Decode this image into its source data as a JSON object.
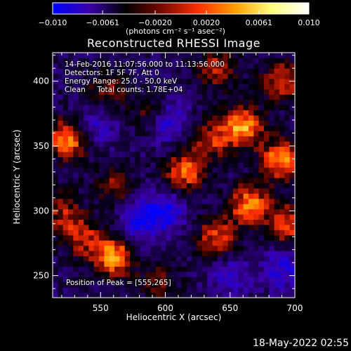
{
  "chart_data": {
    "type": "heatmap",
    "title": "Reconstructed RHESSI Image",
    "xlabel": "Heliocentric X (arcsec)",
    "ylabel": "Heliocentric Y (arcsec)",
    "xlim": [
      513,
      700
    ],
    "ylim": [
      233,
      422
    ],
    "xticks": [
      550,
      600,
      650,
      700
    ],
    "yticks": [
      250,
      300,
      350,
      400
    ],
    "colorbar": {
      "range": [
        -0.01,
        0.01
      ],
      "ticks": [
        {
          "value": -0.01,
          "label": "−0.010"
        },
        {
          "value": -0.0061,
          "label": "−0.0061"
        },
        {
          "value": -0.002,
          "label": "−0.0020"
        },
        {
          "value": 0.002,
          "label": "0.0020"
        },
        {
          "value": 0.0061,
          "label": "0.0061"
        },
        {
          "value": 0.01,
          "label": "0.010"
        }
      ],
      "unit_label": "(photons cm⁻² s⁻¹ asec⁻²)",
      "colors": [
        "#0000ff",
        "#3a00aa",
        "#000000",
        "#7a0a00",
        "#ff3000",
        "#ffa000",
        "#ffff80",
        "#ffffff"
      ]
    },
    "info_lines": [
      "14-Feb-2016 11:07:56.000 to 11:13:56.000",
      "Detectors: 1F 5F 7F, Att 0",
      "Energy Range: 25.0 - 50.0 keV",
      "Clean     Total counts: 1.78E+04"
    ],
    "peak_text": "Position of Peak = [555,265]",
    "blobs": [
      {
        "x": 525,
        "y": 355,
        "amp": 0.0095
      },
      {
        "x": 520,
        "y": 300,
        "amp": 0.005
      },
      {
        "x": 535,
        "y": 280,
        "amp": 0.006
      },
      {
        "x": 560,
        "y": 265,
        "amp": 0.0098
      },
      {
        "x": 560,
        "y": 320,
        "amp": 0.0045
      },
      {
        "x": 555,
        "y": 395,
        "amp": 0.0045
      },
      {
        "x": 590,
        "y": 375,
        "amp": 0.0055
      },
      {
        "x": 615,
        "y": 330,
        "amp": 0.008
      },
      {
        "x": 635,
        "y": 355,
        "amp": 0.006
      },
      {
        "x": 640,
        "y": 280,
        "amp": 0.007
      },
      {
        "x": 660,
        "y": 365,
        "amp": 0.0095
      },
      {
        "x": 665,
        "y": 305,
        "amp": 0.009
      },
      {
        "x": 690,
        "y": 340,
        "amp": 0.0095
      },
      {
        "x": 690,
        "y": 400,
        "amp": 0.007
      },
      {
        "x": 695,
        "y": 290,
        "amp": 0.0075
      },
      {
        "x": 640,
        "y": 410,
        "amp": 0.006
      },
      {
        "x": 595,
        "y": 245,
        "amp": 0.004
      },
      {
        "x": 600,
        "y": 370,
        "amp": -0.007
      },
      {
        "x": 600,
        "y": 300,
        "amp": -0.006
      },
      {
        "x": 580,
        "y": 290,
        "amp": -0.005
      },
      {
        "x": 650,
        "y": 250,
        "amp": -0.004
      },
      {
        "x": 545,
        "y": 365,
        "amp": -0.004
      },
      {
        "x": 690,
        "y": 255,
        "amp": -0.005
      }
    ]
  },
  "timestamp": "18-May-2022 02:55"
}
